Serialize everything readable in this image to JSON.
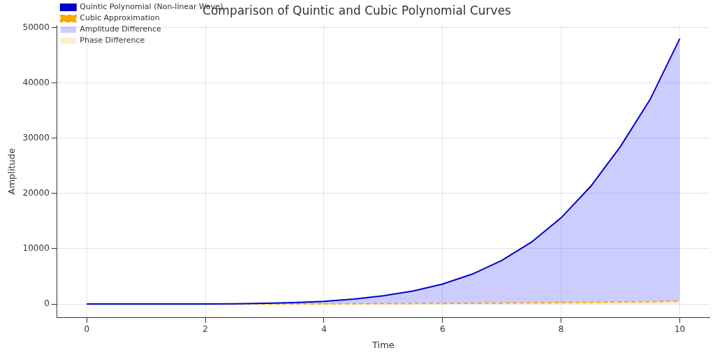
{
  "chart_data": {
    "type": "line",
    "title": "Comparison of Quintic and Cubic Polynomial Curves",
    "x_label": "Time",
    "y_label": "Amplitude",
    "x": [
      0,
      0.5,
      1,
      1.5,
      2,
      2.5,
      3,
      3.5,
      4,
      4.5,
      5,
      5.5,
      6,
      6.5,
      7,
      7.5,
      8,
      8.5,
      9,
      9.5,
      10
    ],
    "series": [
      {
        "name": "Quintic Polynomial (Non-linear Wave)",
        "type": "line",
        "color": "#0000cd",
        "line_style": "solid",
        "values": [
          0,
          0,
          0,
          4,
          15,
          47,
          115,
          260,
          470,
          880,
          1480,
          2350,
          3600,
          5400,
          7900,
          11200,
          15600,
          21300,
          28500,
          37000,
          48000
        ]
      },
      {
        "name": "Cubic Approximation",
        "type": "line",
        "color": "#ffa500",
        "line_style": "dashed",
        "values": [
          0,
          0.06,
          0.5,
          1.7,
          4,
          7.8,
          13.5,
          21.4,
          32,
          45.6,
          62.5,
          83,
          108,
          137,
          171,
          211,
          256,
          307,
          365,
          429,
          500
        ]
      },
      {
        "name": "Amplitude Difference",
        "type": "area",
        "color": "#0000ff",
        "values": [
          0,
          0,
          0,
          4,
          15,
          47,
          115,
          260,
          470,
          880,
          1480,
          2350,
          3600,
          5400,
          7900,
          11200,
          15600,
          21300,
          28500,
          37000,
          48000
        ]
      },
      {
        "name": "Phase Difference",
        "type": "area",
        "color": "#ffa500",
        "values": [
          0,
          0.06,
          0.5,
          1.7,
          4,
          7.8,
          13.5,
          21.4,
          32,
          45.6,
          62.5,
          83,
          108,
          137,
          171,
          211,
          256,
          307,
          365,
          429,
          500
        ]
      }
    ],
    "xlim": [
      -0.5,
      10.5
    ],
    "xticks": [
      0,
      2,
      4,
      6,
      8,
      10
    ],
    "ylim": [
      -2400,
      50400
    ],
    "yticks": [
      0,
      10000,
      20000,
      30000,
      40000,
      50000
    ],
    "grid": true,
    "legend": "upper left"
  }
}
